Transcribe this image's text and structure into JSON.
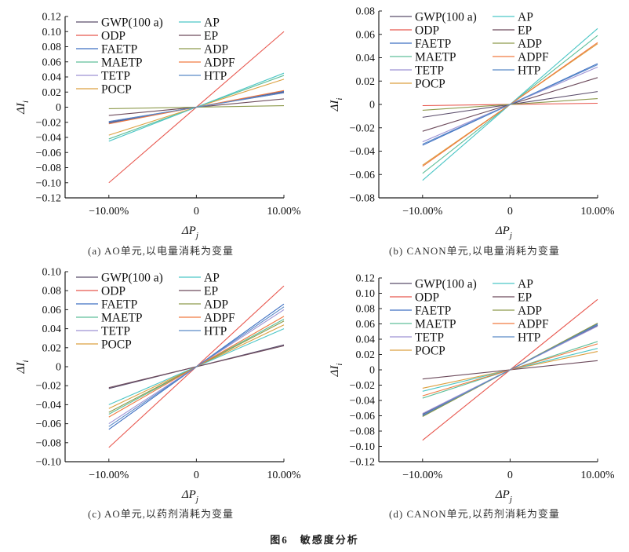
{
  "figure_title": "图6　敏感度分析",
  "legend": [
    "GWP(100 a)",
    "ODP",
    "FAETP",
    "MAETP",
    "TETP",
    "POCP",
    "AP",
    "EP",
    "ADP",
    "ADPF",
    "HTP"
  ],
  "colors": {
    "GWP(100 a)": "#5b4d6b",
    "ODP": "#e8574e",
    "FAETP": "#3d6fc2",
    "MAETP": "#5fbf9a",
    "TETP": "#9d92d4",
    "POCP": "#dca040",
    "AP": "#4cc6c6",
    "EP": "#6d4b5c",
    "ADP": "#8d9a4c",
    "ADPF": "#f07a40",
    "HTP": "#5a8ac8"
  },
  "chart_data": [
    {
      "type": "line",
      "caption": "(a) AO单元,以电量消耗为变量",
      "xlabel": "ΔP",
      "xlabel_sub": "j",
      "ylabel": "ΔI",
      "ylabel_sub": "i",
      "x": [
        -0.1,
        0.1
      ],
      "xticks": [
        "-10.00%",
        "0",
        "10.00%"
      ],
      "xlim": [
        -0.15,
        0.1
      ],
      "ylim": [
        -0.12,
        0.12
      ],
      "yticks": [
        "0.12",
        "0.10",
        "0.08",
        "0.06",
        "0.04",
        "0.02",
        "0",
        "-0.02",
        "-0.04",
        "-0.06",
        "-0.08",
        "-0.10",
        "-0.12"
      ],
      "grid": false,
      "legend_position": "top-left",
      "series": [
        {
          "name": "GWP(100 a)",
          "values": [
            -0.02,
            0.02
          ]
        },
        {
          "name": "ODP",
          "values": [
            -0.1,
            0.1
          ]
        },
        {
          "name": "FAETP",
          "values": [
            -0.021,
            0.021
          ]
        },
        {
          "name": "MAETP",
          "values": [
            -0.042,
            0.042
          ]
        },
        {
          "name": "TETP",
          "values": [
            -0.019,
            0.019
          ]
        },
        {
          "name": "POCP",
          "values": [
            -0.037,
            0.037
          ]
        },
        {
          "name": "AP",
          "values": [
            -0.045,
            0.045
          ]
        },
        {
          "name": "EP",
          "values": [
            -0.011,
            0.011
          ]
        },
        {
          "name": "ADP",
          "values": [
            -0.002,
            0.002
          ]
        },
        {
          "name": "ADPF",
          "values": [
            -0.022,
            0.022
          ]
        },
        {
          "name": "HTP",
          "values": [
            -0.019,
            0.019
          ]
        }
      ]
    },
    {
      "type": "line",
      "caption": "(b) CANON单元,以电量消耗为变量",
      "xlabel": "ΔP",
      "xlabel_sub": "j",
      "ylabel": "ΔI",
      "ylabel_sub": "i",
      "x": [
        -0.1,
        0.1
      ],
      "xticks": [
        "-10.00%",
        "0",
        "10.00%"
      ],
      "xlim": [
        -0.15,
        0.1
      ],
      "ylim": [
        -0.08,
        0.08
      ],
      "yticks": [
        "0.08",
        "0.06",
        "0.04",
        "0.02",
        "0",
        "-0.02",
        "-0.04",
        "-0.06",
        "-0.08"
      ],
      "grid": false,
      "legend_position": "top-left",
      "series": [
        {
          "name": "GWP(100 a)",
          "values": [
            -0.011,
            0.011
          ]
        },
        {
          "name": "ODP",
          "values": [
            -0.001,
            0.001
          ]
        },
        {
          "name": "FAETP",
          "values": [
            -0.035,
            0.035
          ]
        },
        {
          "name": "MAETP",
          "values": [
            -0.059,
            0.059
          ]
        },
        {
          "name": "TETP",
          "values": [
            -0.032,
            0.032
          ]
        },
        {
          "name": "POCP",
          "values": [
            -0.052,
            0.052
          ]
        },
        {
          "name": "AP",
          "values": [
            -0.065,
            0.065
          ]
        },
        {
          "name": "EP",
          "values": [
            -0.023,
            0.023
          ]
        },
        {
          "name": "ADP",
          "values": [
            -0.005,
            0.005
          ]
        },
        {
          "name": "ADPF",
          "values": [
            -0.053,
            0.053
          ]
        },
        {
          "name": "HTP",
          "values": [
            -0.034,
            0.034
          ]
        }
      ]
    },
    {
      "type": "line",
      "caption": "(c) AO单元,以药剂消耗为变量",
      "xlabel": "ΔP",
      "xlabel_sub": "j",
      "ylabel": "ΔI",
      "ylabel_sub": "i",
      "x": [
        -0.1,
        0.1
      ],
      "xticks": [
        "-10.00%",
        "0",
        "10.00%"
      ],
      "xlim": [
        -0.15,
        0.1
      ],
      "ylim": [
        -0.1,
        0.1
      ],
      "yticks": [
        "0.10",
        "0.08",
        "0.06",
        "0.04",
        "0.02",
        "0",
        "-0.02",
        "-0.04",
        "-0.06",
        "-0.08",
        "-0.10"
      ],
      "grid": false,
      "legend_position": "top-left",
      "series": [
        {
          "name": "GWP(100 a)",
          "values": [
            -0.023,
            0.023
          ]
        },
        {
          "name": "ODP",
          "values": [
            -0.085,
            0.085
          ]
        },
        {
          "name": "FAETP",
          "values": [
            -0.066,
            0.066
          ]
        },
        {
          "name": "MAETP",
          "values": [
            -0.05,
            0.05
          ]
        },
        {
          "name": "TETP",
          "values": [
            -0.06,
            0.06
          ]
        },
        {
          "name": "POCP",
          "values": [
            -0.044,
            0.044
          ]
        },
        {
          "name": "AP",
          "values": [
            -0.04,
            0.04
          ]
        },
        {
          "name": "EP",
          "values": [
            -0.022,
            0.022
          ]
        },
        {
          "name": "ADP",
          "values": [
            -0.048,
            0.048
          ]
        },
        {
          "name": "ADPF",
          "values": [
            -0.053,
            0.053
          ]
        },
        {
          "name": "HTP",
          "values": [
            -0.063,
            0.063
          ]
        }
      ]
    },
    {
      "type": "line",
      "caption": "(d) CANON单元,以药剂消耗为变量",
      "xlabel": "ΔP",
      "xlabel_sub": "j",
      "ylabel": "ΔI",
      "ylabel_sub": "i",
      "x": [
        -0.1,
        0.1
      ],
      "xticks": [
        "-10.00%",
        "0",
        "10.00%"
      ],
      "xlim": [
        -0.15,
        0.1
      ],
      "ylim": [
        -0.12,
        0.12
      ],
      "yticks": [
        "0.12",
        "0.10",
        "0.08",
        "0.06",
        "0.04",
        "0.02",
        "0",
        "-0.02",
        "-0.04",
        "-0.06",
        "-0.08",
        "-0.10",
        "-0.12"
      ],
      "grid": false,
      "legend_position": "top-left",
      "series": [
        {
          "name": "GWP(100 a)",
          "values": [
            -0.058,
            0.058
          ]
        },
        {
          "name": "ODP",
          "values": [
            -0.092,
            0.092
          ]
        },
        {
          "name": "FAETP",
          "values": [
            -0.06,
            0.06
          ]
        },
        {
          "name": "MAETP",
          "values": [
            -0.037,
            0.037
          ]
        },
        {
          "name": "TETP",
          "values": [
            -0.057,
            0.057
          ]
        },
        {
          "name": "POCP",
          "values": [
            -0.024,
            0.024
          ]
        },
        {
          "name": "AP",
          "values": [
            -0.028,
            0.028
          ]
        },
        {
          "name": "EP",
          "values": [
            -0.012,
            0.012
          ]
        },
        {
          "name": "ADP",
          "values": [
            -0.061,
            0.061
          ]
        },
        {
          "name": "ADPF",
          "values": [
            -0.034,
            0.034
          ]
        },
        {
          "name": "HTP",
          "values": [
            -0.059,
            0.059
          ]
        }
      ]
    }
  ]
}
